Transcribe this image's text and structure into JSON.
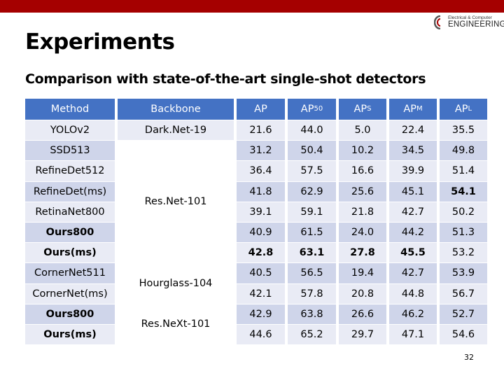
{
  "slide": {
    "title": "Experiments",
    "subtitle": "Comparison with state-of-the-art single-shot detectors",
    "page_number": "32",
    "logo": {
      "line1": "Electrical & Computer",
      "line2": "ENGINEERING"
    }
  },
  "colors": {
    "accent_bar": "#a50000",
    "header": "#4472c4",
    "row_even": "#cfd5ea",
    "row_odd": "#e9ebf5"
  },
  "table": {
    "headers": [
      "Method",
      "Backbone",
      "AP",
      "AP",
      "AP",
      "AP",
      "AP"
    ],
    "header_subs": [
      "",
      "",
      "",
      "50",
      "S",
      "M",
      "L"
    ],
    "methods": [
      "YOLOv2",
      "SSD513",
      "RefineDet512",
      "RefineDet(ms)",
      "RetinaNet800",
      "Ours800",
      "Ours(ms)",
      "CornerNet511",
      "CornerNet(ms)",
      "Ours800",
      "Ours(ms)"
    ],
    "method_bold": [
      false,
      false,
      false,
      false,
      false,
      true,
      true,
      false,
      false,
      true,
      true
    ],
    "backbones": [
      "Dark.Net-19",
      "Res.Net-101",
      "Hourglass-104",
      "Res.NeXt-101"
    ],
    "values": [
      [
        "21.6",
        "44.0",
        "5.0",
        "22.4",
        "35.5"
      ],
      [
        "31.2",
        "50.4",
        "10.2",
        "34.5",
        "49.8"
      ],
      [
        "36.4",
        "57.5",
        "16.6",
        "39.9",
        "51.4"
      ],
      [
        "41.8",
        "62.9",
        "25.6",
        "45.1",
        "54.1"
      ],
      [
        "39.1",
        "59.1",
        "21.8",
        "42.7",
        "50.2"
      ],
      [
        "40.9",
        "61.5",
        "24.0",
        "44.2",
        "51.3"
      ],
      [
        "42.8",
        "63.1",
        "27.8",
        "45.5",
        "53.2"
      ],
      [
        "40.5",
        "56.5",
        "19.4",
        "42.7",
        "53.9"
      ],
      [
        "42.1",
        "57.8",
        "20.8",
        "44.8",
        "56.7"
      ],
      [
        "42.9",
        "63.8",
        "26.6",
        "46.2",
        "52.7"
      ],
      [
        "44.6",
        "65.2",
        "29.7",
        "47.1",
        "54.6"
      ]
    ],
    "bold_cells": [
      [
        3,
        4
      ],
      [
        6,
        0
      ],
      [
        6,
        1
      ],
      [
        6,
        2
      ],
      [
        6,
        3
      ]
    ]
  }
}
